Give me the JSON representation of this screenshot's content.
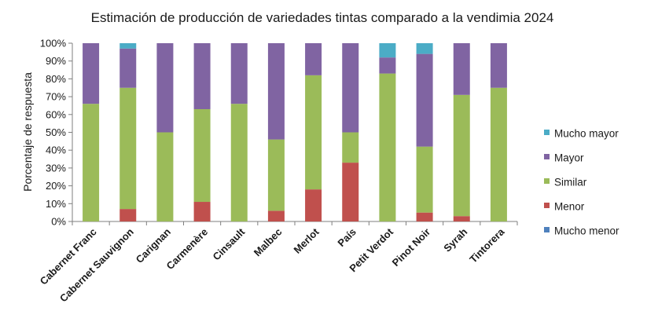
{
  "chart_data": {
    "type": "bar",
    "stacked": true,
    "title": "Estimación de producción de variedades tintas comparado a la vendimia 2024",
    "ylabel": "Porcentaje de respuesta",
    "xlabel": "",
    "ylim": [
      0,
      100
    ],
    "yticks": [
      "0%",
      "10%",
      "20%",
      "30%",
      "40%",
      "50%",
      "60%",
      "70%",
      "80%",
      "90%",
      "100%"
    ],
    "categories": [
      "Cabernet Franc",
      "Cabernet Sauvignon",
      "Carignan",
      "Carmenère",
      "Cinsault",
      "Malbec",
      "Merlot",
      "País",
      "Petit Verdot",
      "Pinot Noir",
      "Syrah",
      "Tintorera"
    ],
    "series": [
      {
        "name": "Mucho menor",
        "color": "#4f81bd",
        "values": [
          0,
          0,
          0,
          0,
          0,
          0,
          0,
          0,
          0,
          0,
          0,
          0
        ]
      },
      {
        "name": "Menor",
        "color": "#c0504d",
        "values": [
          0,
          7,
          0,
          11,
          0,
          6,
          18,
          33,
          0,
          5,
          3,
          0
        ]
      },
      {
        "name": "Similar",
        "color": "#9bbb59",
        "values": [
          66,
          68,
          50,
          52,
          66,
          40,
          64,
          17,
          83,
          37,
          68,
          75
        ]
      },
      {
        "name": "Mayor",
        "color": "#8064a2",
        "values": [
          34,
          22,
          50,
          37,
          34,
          54,
          18,
          50,
          9,
          52,
          29,
          25
        ]
      },
      {
        "name": "Mucho mayor",
        "color": "#4bacc6",
        "values": [
          0,
          3,
          0,
          0,
          0,
          0,
          0,
          0,
          8,
          6,
          0,
          0
        ]
      }
    ],
    "legend": {
      "position": "right",
      "order": [
        "Mucho mayor",
        "Mayor",
        "Similar",
        "Menor",
        "Mucho menor"
      ]
    },
    "grid": false
  }
}
